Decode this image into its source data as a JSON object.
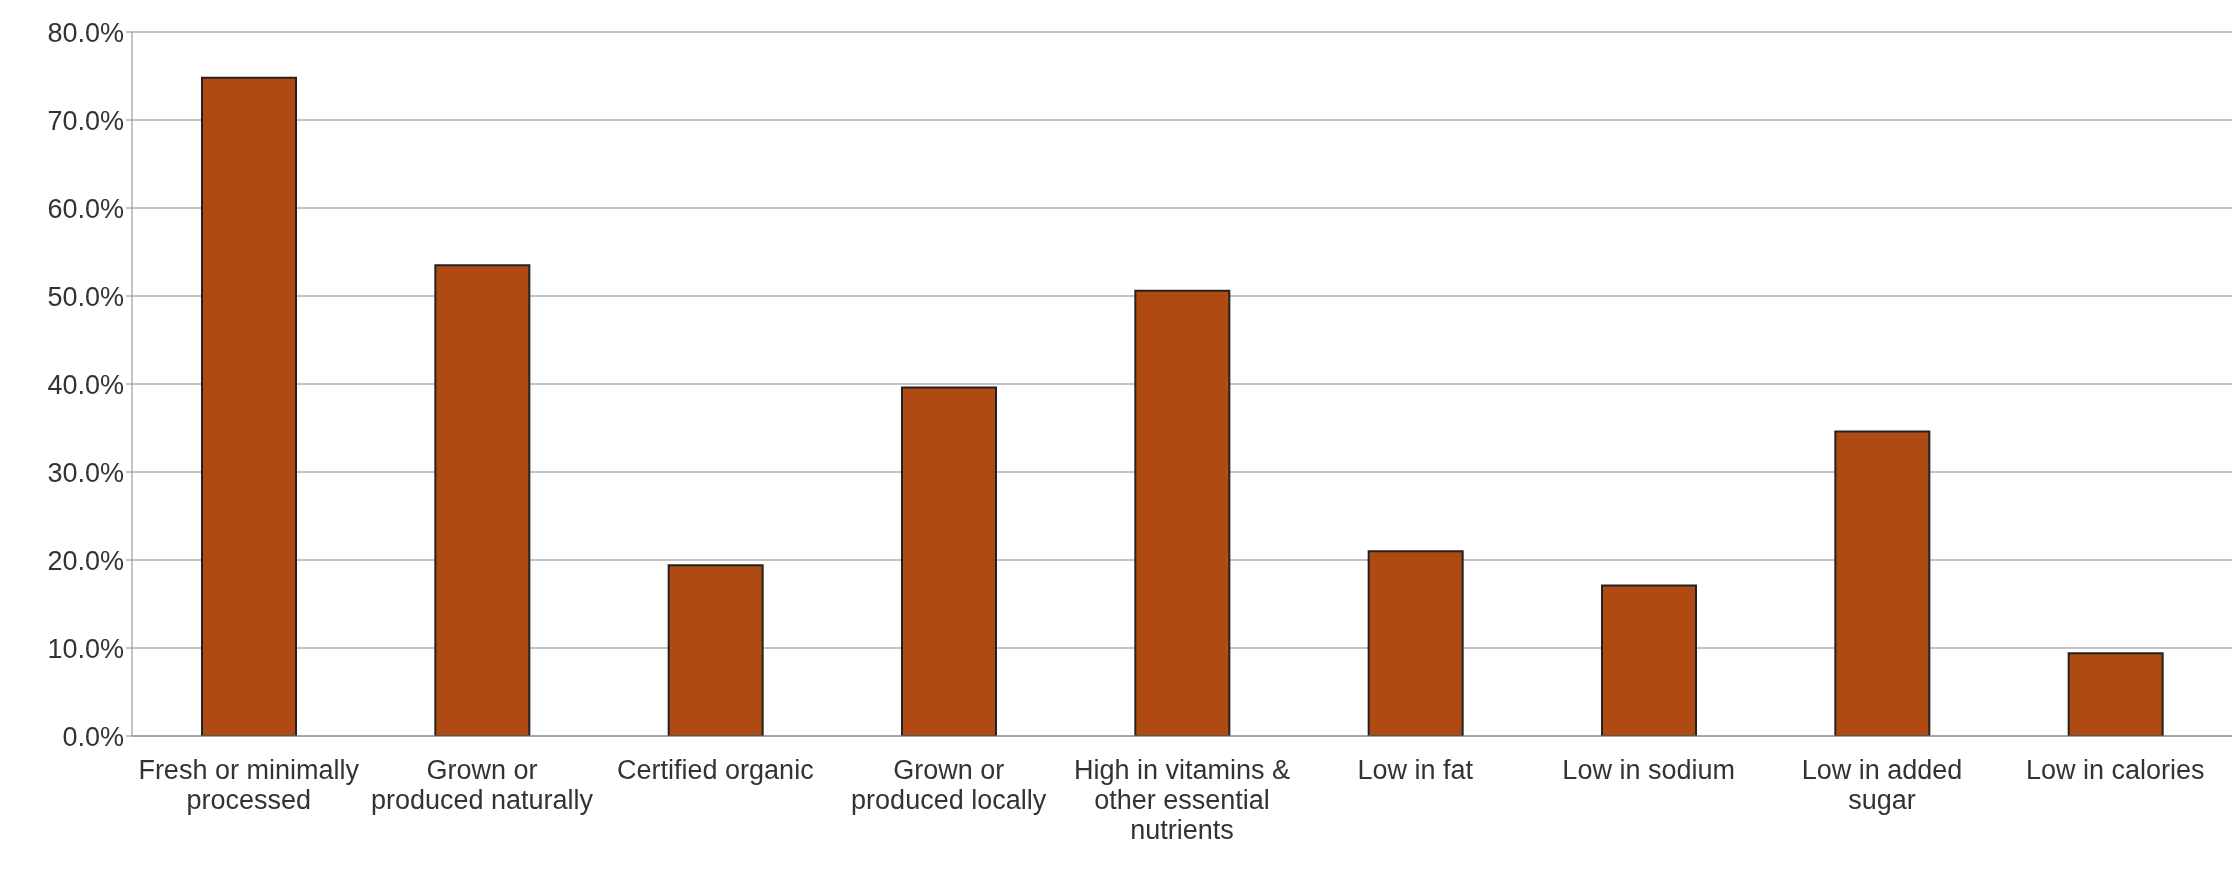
{
  "chart_data": {
    "type": "bar",
    "categories": [
      "Fresh or minimally processed",
      "Grown or produced naturally",
      "Certified organic",
      "Grown or produced locally",
      "High in vitamins & other essential nutrients",
      "Low in fat",
      "Low in sodium",
      "Low in added sugar",
      "Low in calories"
    ],
    "values": [
      74.8,
      53.5,
      19.4,
      39.6,
      50.6,
      21.0,
      17.1,
      34.6,
      9.4
    ],
    "color": "#ae4a12",
    "ylim": [
      0,
      80
    ],
    "yticks": [
      {
        "value": 0,
        "label": "0.0%"
      },
      {
        "value": 10,
        "label": "10.0%"
      },
      {
        "value": 20,
        "label": "20.0%"
      },
      {
        "value": 30,
        "label": "30.0%"
      },
      {
        "value": 40,
        "label": "40.0%"
      },
      {
        "value": 50,
        "label": "50.0%"
      },
      {
        "value": 60,
        "label": "60.0%"
      },
      {
        "value": 70,
        "label": "70.0%"
      },
      {
        "value": 80,
        "label": "80.0%"
      }
    ],
    "grid": "y"
  }
}
